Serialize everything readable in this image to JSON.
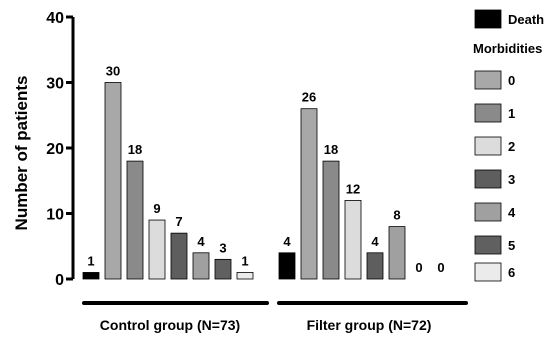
{
  "chart_data": {
    "type": "bar",
    "ylabel": "Number of patients",
    "ylim": [
      0,
      40
    ],
    "yticks": [
      0,
      10,
      20,
      30,
      40
    ],
    "grid": false,
    "legend_position": "right",
    "categories": [
      "Control group (N=73)",
      "Filter group (N=72)"
    ],
    "series": [
      {
        "name": "Death",
        "values": [
          1,
          4
        ],
        "color": "#000000"
      },
      {
        "name": "0",
        "values": [
          30,
          26
        ],
        "color": "#a8a8a8"
      },
      {
        "name": "1",
        "values": [
          18,
          18
        ],
        "color": "#8a8a8a"
      },
      {
        "name": "2",
        "values": [
          9,
          12
        ],
        "color": "#dcdcdc"
      },
      {
        "name": "3",
        "values": [
          7,
          4
        ],
        "color": "#5e5e5e"
      },
      {
        "name": "4",
        "values": [
          4,
          8
        ],
        "color": "#a0a0a0"
      },
      {
        "name": "5",
        "values": [
          3,
          0
        ],
        "color": "#606060"
      },
      {
        "name": "6",
        "values": [
          1,
          0
        ],
        "color": "#ebebeb"
      }
    ],
    "legend_heading": "Morbidities"
  }
}
